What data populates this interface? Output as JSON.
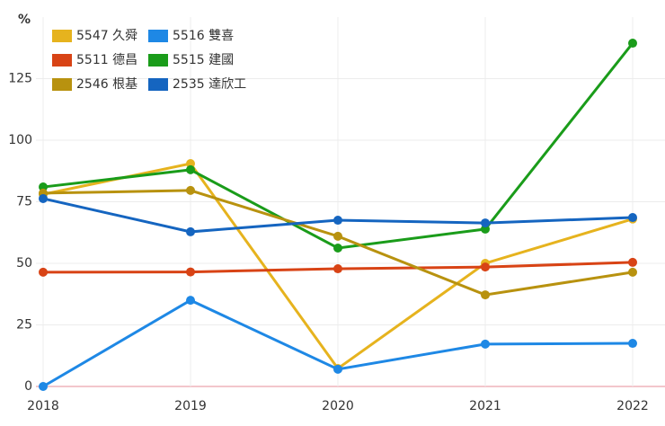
{
  "chart_data": {
    "type": "line",
    "y_label": "%",
    "categories": [
      "2018",
      "2019",
      "2020",
      "2021",
      "2022"
    ],
    "series": [
      {
        "name": "5547 久舜",
        "color": "#e6b31e",
        "values": [
          78,
          90.5,
          7.3,
          50,
          68
        ]
      },
      {
        "name": "5516 雙喜",
        "color": "#1e88e5",
        "values": [
          0,
          35,
          7,
          17.2,
          17.5
        ]
      },
      {
        "name": "5511 德昌",
        "color": "#d84315",
        "values": [
          46.4,
          46.5,
          47.8,
          48.5,
          50.4
        ]
      },
      {
        "name": "5515 建國",
        "color": "#1a9c1a",
        "values": [
          81,
          88,
          56.2,
          63.9,
          139.4
        ]
      },
      {
        "name": "2546 根基",
        "color": "#b8920f",
        "values": [
          78.5,
          79.6,
          61,
          37.2,
          46.4
        ]
      },
      {
        "name": "2535 達欣工",
        "color": "#1565c0",
        "values": [
          76.3,
          62.8,
          67.5,
          66.4,
          68.6
        ]
      }
    ],
    "ylim": [
      0,
      150
    ],
    "yticks": [
      0,
      25,
      50,
      75,
      100,
      125
    ],
    "grid": true,
    "legend": "top-left"
  }
}
